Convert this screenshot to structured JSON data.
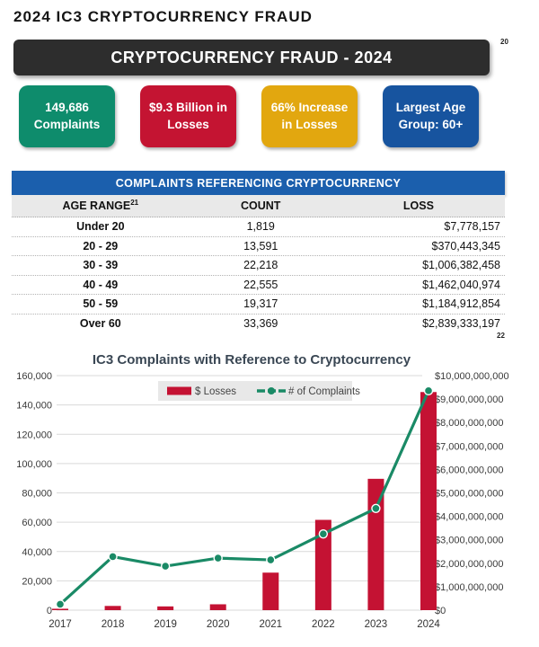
{
  "page": {
    "title": "2024 IC3 CRYPTOCURRENCY FRAUD"
  },
  "banner": {
    "label": "CRYPTOCURRENCY FRAUD - 2024",
    "footnote": "20"
  },
  "stat_cards": [
    {
      "name": "complaints",
      "line1": "149,686",
      "line2": "Complaints",
      "color": "#0e8c6c"
    },
    {
      "name": "losses",
      "line1": "$9.3 Billion in",
      "line2": "Losses",
      "color": "#c41432"
    },
    {
      "name": "increase",
      "line1": "66% Increase",
      "line2": "in Losses",
      "color": "#e2a70f"
    },
    {
      "name": "age-group",
      "line1": "Largest Age",
      "line2": "Group: 60+",
      "color": "#17549f"
    }
  ],
  "table": {
    "title": "COMPLAINTS REFERENCING CRYPTOCURRENCY",
    "columns": [
      "AGE RANGE",
      "COUNT",
      "LOSS"
    ],
    "age_footnote": "21",
    "footnote": "22",
    "rows": [
      {
        "age": "Under 20",
        "count": "1,819",
        "loss": "$7,778,157"
      },
      {
        "age": "20 - 29",
        "count": "13,591",
        "loss": "$370,443,345"
      },
      {
        "age": "30 - 39",
        "count": "22,218",
        "loss": "$1,006,382,458"
      },
      {
        "age": "40 - 49",
        "count": "22,555",
        "loss": "$1,462,040,974"
      },
      {
        "age": "50 - 59",
        "count": "19,317",
        "loss": "$1,184,912,854"
      },
      {
        "age": "Over 60",
        "count": "33,369",
        "loss": "$2,839,333,197"
      }
    ]
  },
  "chart_data": {
    "type": "bar",
    "subtype": "combo-bar-line-dual-axis",
    "title": "IC3 Complaints with Reference to Cryptocurrency",
    "categories": [
      "2017",
      "2018",
      "2019",
      "2020",
      "2021",
      "2022",
      "2023",
      "2024"
    ],
    "series": [
      {
        "name": "$ Losses",
        "type": "bar",
        "axis": "right",
        "color": "#c41233",
        "values": [
          60000000,
          180000000,
          160000000,
          250000000,
          1600000000,
          3850000000,
          5600000000,
          9300000000
        ]
      },
      {
        "name": "# of Complaints",
        "type": "line",
        "axis": "left",
        "color": "#1a8a66",
        "values": [
          4000,
          36500,
          30000,
          35500,
          34300,
          52000,
          69400,
          149686
        ]
      }
    ],
    "left_axis": {
      "min": 0,
      "max": 160000,
      "ticks": [
        "0",
        "20,000",
        "40,000",
        "60,000",
        "80,000",
        "100,000",
        "120,000",
        "140,000",
        "160,000"
      ]
    },
    "right_axis": {
      "min": 0,
      "max": 10000000000,
      "ticks": [
        "$0",
        "$1,000,000,000",
        "$2,000,000,000",
        "$3,000,000,000",
        "$4,000,000,000",
        "$5,000,000,000",
        "$6,000,000,000",
        "$7,000,000,000",
        "$8,000,000,000",
        "$9,000,000,000",
        "$10,000,000,000"
      ]
    },
    "legend_position": "top-center",
    "grid": true
  },
  "colors": {
    "banner_dark": "#2d2d2d",
    "card_green": "#0e8c6c",
    "card_red": "#c41432",
    "card_gold": "#e2a70f",
    "card_blue": "#17549f",
    "table_header_blue": "#1b5fad",
    "bar_red": "#c41233",
    "line_green": "#1a8a66",
    "legend_bg": "#e8e8e8",
    "gridline": "#d9d9d9"
  }
}
